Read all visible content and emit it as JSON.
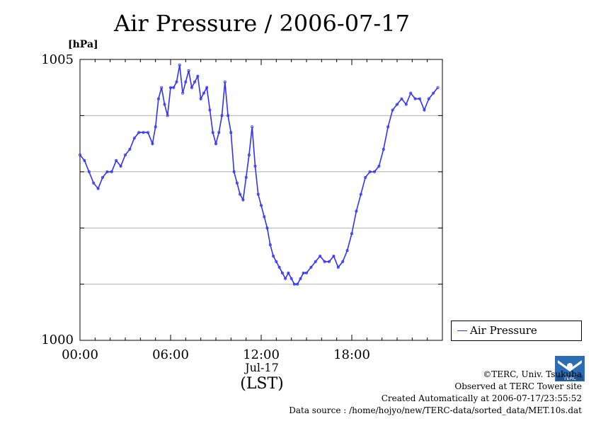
{
  "chart_data": {
    "type": "line",
    "title": "Air Pressure / 2006-07-17",
    "ylabel": "[hPa]",
    "xlabel": "(LST)",
    "x_sublabel": "Jul-17",
    "ylim": [
      1000,
      1005
    ],
    "xlim": [
      0,
      24
    ],
    "y_ticks": [
      "1000",
      "1005"
    ],
    "x_ticks": [
      {
        "value": 0,
        "label": "00:00"
      },
      {
        "value": 6,
        "label": "06:00"
      },
      {
        "value": 12,
        "label": "12:00"
      },
      {
        "value": 18,
        "label": "18:00"
      }
    ],
    "grid": true,
    "legend": {
      "position": "bottom-right",
      "entries": [
        "Air Pressure"
      ]
    },
    "series": [
      {
        "name": "Air Pressure",
        "color": "#3030ff",
        "x": [
          0,
          0.3,
          0.6,
          0.9,
          1.2,
          1.5,
          1.8,
          2.1,
          2.4,
          2.7,
          3.0,
          3.3,
          3.6,
          3.9,
          4.2,
          4.5,
          4.8,
          5.0,
          5.2,
          5.4,
          5.6,
          5.8,
          6.0,
          6.2,
          6.4,
          6.6,
          6.8,
          7.0,
          7.2,
          7.4,
          7.6,
          7.8,
          8.0,
          8.2,
          8.4,
          8.6,
          8.8,
          9.0,
          9.2,
          9.4,
          9.6,
          9.8,
          10.0,
          10.2,
          10.4,
          10.6,
          10.8,
          11.0,
          11.2,
          11.4,
          11.6,
          11.8,
          12.0,
          12.2,
          12.4,
          12.6,
          12.8,
          13.0,
          13.2,
          13.4,
          13.6,
          13.8,
          14.0,
          14.2,
          14.4,
          14.6,
          14.8,
          15.0,
          15.3,
          15.6,
          15.9,
          16.2,
          16.5,
          16.8,
          17.1,
          17.4,
          17.7,
          18.0,
          18.3,
          18.6,
          18.9,
          19.2,
          19.5,
          19.8,
          20.1,
          20.4,
          20.7,
          21.0,
          21.3,
          21.6,
          21.9,
          22.2,
          22.5,
          22.8,
          23.1,
          23.4,
          23.7
        ],
        "y": [
          1003.3,
          1003.2,
          1003.0,
          1002.8,
          1002.7,
          1002.9,
          1003.0,
          1003.0,
          1003.2,
          1003.1,
          1003.3,
          1003.4,
          1003.6,
          1003.7,
          1003.7,
          1003.7,
          1003.5,
          1003.8,
          1004.3,
          1004.5,
          1004.2,
          1004.0,
          1004.5,
          1004.5,
          1004.6,
          1004.9,
          1004.4,
          1004.6,
          1004.8,
          1004.5,
          1004.6,
          1004.7,
          1004.3,
          1004.4,
          1004.5,
          1004.1,
          1003.7,
          1003.5,
          1003.7,
          1004.0,
          1004.6,
          1004.0,
          1003.7,
          1003.0,
          1002.8,
          1002.6,
          1002.5,
          1002.9,
          1003.3,
          1003.8,
          1003.1,
          1002.6,
          1002.4,
          1002.2,
          1002.0,
          1001.7,
          1001.5,
          1001.4,
          1001.3,
          1001.2,
          1001.1,
          1001.2,
          1001.1,
          1001.0,
          1001.0,
          1001.1,
          1001.2,
          1001.2,
          1001.3,
          1001.4,
          1001.5,
          1001.4,
          1001.4,
          1001.5,
          1001.3,
          1001.4,
          1001.6,
          1001.9,
          1002.3,
          1002.6,
          1002.9,
          1003.0,
          1003.0,
          1003.1,
          1003.4,
          1003.8,
          1004.1,
          1004.2,
          1004.3,
          1004.2,
          1004.4,
          1004.3,
          1004.3,
          1004.1,
          1004.3,
          1004.4,
          1004.5
        ]
      }
    ]
  },
  "footer": {
    "copyright": "©TERC, Univ. Tsukuba",
    "observed": "Observed at TERC Tower site",
    "created": "Created Automatically at 2006-07-17/23:55:52",
    "source": "Data source : /home/hojyo/new/TERC-data/sorted_data/MET.10s.dat",
    "logo_text": "TERC"
  }
}
